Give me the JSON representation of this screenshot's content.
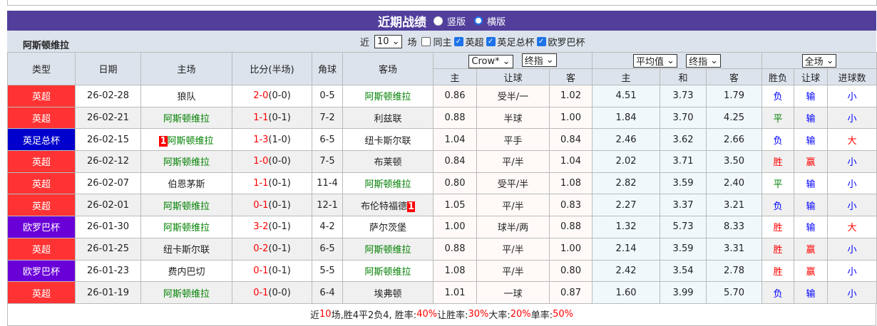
{
  "title": "近期战绩",
  "view_options": [
    "竖版",
    "横版"
  ],
  "view_selected": "横版",
  "team": "阿斯顿维拉",
  "filter": {
    "prefix": "近",
    "count": "10",
    "suffix": "场",
    "options": [
      {
        "label": "同主",
        "checked": false
      },
      {
        "label": "英超",
        "checked": true
      },
      {
        "label": "英足总杯",
        "checked": true
      },
      {
        "label": "欧罗巴杯",
        "checked": true
      }
    ]
  },
  "headers": {
    "type": "类型",
    "date": "日期",
    "home": "主场",
    "score": "比分(半场)",
    "corner": "角球",
    "away": "客场",
    "crown_select": "Crow*",
    "crown_type": "终指",
    "avg_select": "平均值",
    "avg_type": "终指",
    "scope_select": "全场",
    "sub": [
      "主",
      "让球",
      "客",
      "主",
      "和",
      "客",
      "胜负",
      "让球",
      "进球数"
    ]
  },
  "league_colors": {
    "英超": "#ff3333",
    "英足总杯": "#0000cc",
    "欧罗巴杯": "#6a00d8"
  },
  "rows": [
    {
      "league": "英超",
      "date": "26-02-28",
      "home": "狼队",
      "home_red": "",
      "score": "2-0",
      "half": "(0-0)",
      "corner": "0-5",
      "away": "阿斯顿维拉",
      "away_red": "",
      "o": [
        "0.86",
        "受半/一",
        "1.02"
      ],
      "a": [
        "4.51",
        "3.73",
        "1.79"
      ],
      "res": [
        "负",
        "输",
        "小"
      ]
    },
    {
      "league": "英超",
      "date": "26-02-21",
      "home": "阿斯顿维拉",
      "home_red": "",
      "score": "1-1",
      "half": "(0-1)",
      "corner": "7-2",
      "away": "利兹联",
      "away_red": "",
      "o": [
        "0.88",
        "半球",
        "1.00"
      ],
      "a": [
        "1.84",
        "3.70",
        "4.25"
      ],
      "res": [
        "平",
        "输",
        "小"
      ]
    },
    {
      "league": "英足总杯",
      "date": "26-02-15",
      "home": "阿斯顿维拉",
      "home_red": "1",
      "score": "1-3",
      "half": "(1-0)",
      "corner": "6-5",
      "away": "纽卡斯尔联",
      "away_red": "",
      "o": [
        "1.04",
        "平手",
        "0.84"
      ],
      "a": [
        "2.46",
        "3.62",
        "2.66"
      ],
      "res": [
        "负",
        "输",
        "大"
      ]
    },
    {
      "league": "英超",
      "date": "26-02-12",
      "home": "阿斯顿维拉",
      "home_red": "",
      "score": "1-0",
      "half": "(0-0)",
      "corner": "7-5",
      "away": "布莱顿",
      "away_red": "",
      "o": [
        "0.84",
        "平/半",
        "1.04"
      ],
      "a": [
        "2.02",
        "3.71",
        "3.50"
      ],
      "res": [
        "胜",
        "赢",
        "小"
      ]
    },
    {
      "league": "英超",
      "date": "26-02-07",
      "home": "伯恩茅斯",
      "home_red": "",
      "score": "1-1",
      "half": "(0-1)",
      "corner": "11-4",
      "away": "阿斯顿维拉",
      "away_red": "",
      "o": [
        "0.80",
        "受平/半",
        "1.08"
      ],
      "a": [
        "2.82",
        "3.59",
        "2.40"
      ],
      "res": [
        "平",
        "输",
        "小"
      ]
    },
    {
      "league": "英超",
      "date": "26-02-01",
      "home": "阿斯顿维拉",
      "home_red": "",
      "score": "0-1",
      "half": "(0-1)",
      "corner": "12-1",
      "away": "布伦特福德",
      "away_red": "1",
      "o": [
        "1.05",
        "平/半",
        "0.83"
      ],
      "a": [
        "2.27",
        "3.37",
        "3.21"
      ],
      "res": [
        "负",
        "输",
        "小"
      ]
    },
    {
      "league": "欧罗巴杯",
      "date": "26-01-30",
      "home": "阿斯顿维拉",
      "home_red": "",
      "score": "3-2",
      "half": "(0-1)",
      "corner": "4-2",
      "away": "萨尔茨堡",
      "away_red": "",
      "o": [
        "1.00",
        "球半/两",
        "0.88"
      ],
      "a": [
        "1.32",
        "5.73",
        "8.33"
      ],
      "res": [
        "胜",
        "输",
        "大"
      ]
    },
    {
      "league": "英超",
      "date": "26-01-25",
      "home": "纽卡斯尔联",
      "home_red": "",
      "score": "0-2",
      "half": "(0-1)",
      "corner": "6-5",
      "away": "阿斯顿维拉",
      "away_red": "",
      "o": [
        "0.88",
        "平/半",
        "1.00"
      ],
      "a": [
        "2.14",
        "3.59",
        "3.31"
      ],
      "res": [
        "胜",
        "赢",
        "小"
      ]
    },
    {
      "league": "欧罗巴杯",
      "date": "26-01-23",
      "home": "费内巴切",
      "home_red": "",
      "score": "0-1",
      "half": "(0-1)",
      "corner": "5-5",
      "away": "阿斯顿维拉",
      "away_red": "",
      "o": [
        "1.08",
        "平/半",
        "0.80"
      ],
      "a": [
        "2.42",
        "3.54",
        "2.78"
      ],
      "res": [
        "胜",
        "赢",
        "小"
      ]
    },
    {
      "league": "英超",
      "date": "26-01-19",
      "home": "阿斯顿维拉",
      "home_red": "",
      "score": "0-1",
      "half": "(0-0)",
      "corner": "6-4",
      "away": "埃弗顿",
      "away_red": "",
      "o": [
        "1.01",
        "一球",
        "0.87"
      ],
      "a": [
        "1.60",
        "3.99",
        "5.70"
      ],
      "res": [
        "负",
        "输",
        "小"
      ]
    }
  ],
  "summary": [
    {
      "t": "近",
      "red": false
    },
    {
      "t": "10",
      "red": true
    },
    {
      "t": "场,胜4平2负4, 胜率:",
      "red": false
    },
    {
      "t": "40%",
      "red": true
    },
    {
      "t": " 让胜率:",
      "red": false
    },
    {
      "t": "30%",
      "red": true
    },
    {
      "t": " 大率:",
      "red": false
    },
    {
      "t": "20%",
      "red": true
    },
    {
      "t": " 单率:",
      "red": false
    },
    {
      "t": "50%",
      "red": true
    }
  ]
}
